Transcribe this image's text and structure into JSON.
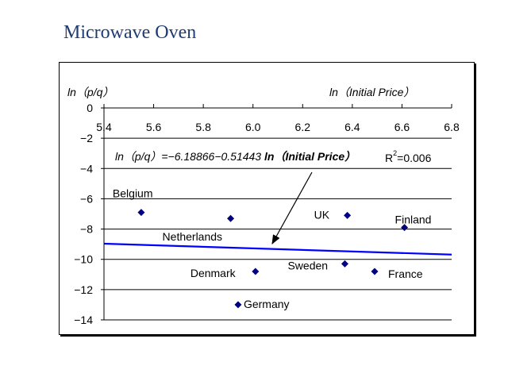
{
  "page": {
    "title": "Microwave Oven"
  },
  "chart_data": {
    "type": "scatter",
    "title": "",
    "xlabel": "ln（Initial Price）",
    "ylabel": "ln（p/q）",
    "xlim": [
      5.4,
      6.8
    ],
    "ylim": [
      -14,
      0
    ],
    "x_ticks": [
      5.4,
      5.6,
      5.8,
      6.0,
      6.2,
      6.4,
      6.6,
      6.8
    ],
    "x_tick_labels": [
      "5.4",
      "5.6",
      "5.8",
      "6.0",
      "6.2",
      "6.4",
      "6.6",
      "6.8"
    ],
    "y_ticks": [
      0,
      -2,
      -4,
      -6,
      -8,
      -10,
      -12,
      -14
    ],
    "y_tick_labels": [
      "0",
      "−2",
      "−4",
      "−6",
      "−8",
      "−10",
      "−12",
      "−14"
    ],
    "grid": "horizontal",
    "marker_color": "#000080",
    "line_color": "#0000ff",
    "points": [
      {
        "label": "Belgium",
        "x": 5.55,
        "y": -6.9
      },
      {
        "label": "Netherlands",
        "x": 5.91,
        "y": -7.3
      },
      {
        "label": "UK",
        "x": 6.38,
        "y": -7.1
      },
      {
        "label": "Finland",
        "x": 6.61,
        "y": -7.9
      },
      {
        "label": "Denmark",
        "x": 6.01,
        "y": -10.8
      },
      {
        "label": "Sweden",
        "x": 6.37,
        "y": -10.3
      },
      {
        "label": "France",
        "x": 6.49,
        "y": -10.8
      },
      {
        "label": "Germany",
        "x": 5.94,
        "y": -13.0
      }
    ],
    "trendline": {
      "intercept": -6.18866,
      "slope": -0.51443,
      "x_range": [
        5.4,
        6.8
      ],
      "equation_prefix": "ln（p/q）=−6.18866−0.51443 ",
      "equation_var": "ln（Initial Price）",
      "r2_prefix": "R",
      "r2_sup": "2",
      "r2_suffix": "=0.006"
    }
  }
}
